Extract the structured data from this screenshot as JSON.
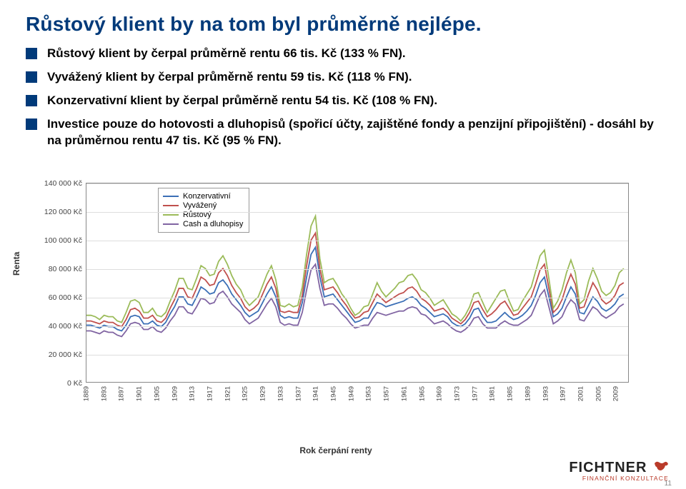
{
  "title": "Růstový klient by na tom byl průměrně nejlépe.",
  "title_color": "#003a7a",
  "bullets": [
    "Růstový klient by čerpal průměrně rentu 66 tis. Kč (133 % FN).",
    "Vyvážený klient by čerpal průměrně rentu 59 tis. Kč (118 % FN).",
    "Konzervativní klient by čerpal průměrně rentu 54 tis. Kč (108 % FN).",
    "Investice pouze do hotovosti a dluhopisů (spořicí účty, zajištěné fondy a penzijní připojištění) - dosáhl by na průměrnou rentu 47 tis. Kč (95 % FN)."
  ],
  "bullet_square_color": "#003a7a",
  "chart": {
    "type": "line",
    "ylabel": "Renta",
    "xlabel": "Rok čerpání renty",
    "ylim": [
      0,
      140000
    ],
    "ytick_step": 20000,
    "ytick_labels": [
      "0 Kč",
      "20 000 Kč",
      "40 000 Kč",
      "60 000 Kč",
      "80 000 Kč",
      "100 000 Kč",
      "120 000 Kč",
      "140 000 Kč"
    ],
    "xlim": [
      1889,
      2012
    ],
    "xtick_step": 4,
    "xtick_start": 1889,
    "xtick_end": 2009,
    "background_color": "#ffffff",
    "grid_color": "#dddddd",
    "border_color": "#888888",
    "line_width": 1.8,
    "series": [
      {
        "name": "Konzervativní",
        "color": "#3b6fb6",
        "values": [
          40000,
          40000,
          39000,
          38000,
          40000,
          39000,
          39000,
          37000,
          36000,
          40000,
          46000,
          47000,
          46000,
          41000,
          41000,
          43000,
          40000,
          39000,
          42000,
          48000,
          53000,
          60000,
          60000,
          55000,
          54000,
          60000,
          67000,
          65000,
          62000,
          63000,
          70000,
          72000,
          68000,
          62000,
          58000,
          54000,
          49000,
          46000,
          48000,
          50000,
          56000,
          62000,
          67000,
          60000,
          47000,
          45000,
          46000,
          45000,
          45000,
          56000,
          74000,
          90000,
          95000,
          74000,
          60000,
          61000,
          62000,
          58000,
          54000,
          50000,
          46000,
          42000,
          43000,
          45000,
          45000,
          51000,
          56000,
          55000,
          53000,
          54000,
          55000,
          56000,
          57000,
          59000,
          60000,
          58000,
          54000,
          52000,
          49000,
          46000,
          47000,
          48000,
          46000,
          42000,
          40000,
          39000,
          41000,
          45000,
          51000,
          52000,
          46000,
          42000,
          42000,
          43000,
          46000,
          49000,
          46000,
          44000,
          45000,
          47000,
          50000,
          54000,
          61000,
          70000,
          74000,
          60000,
          46000,
          48000,
          52000,
          60000,
          67000,
          62000,
          49000,
          48000,
          54000,
          60000,
          57000,
          52000,
          50000,
          52000,
          55000,
          60000,
          62000
        ]
      },
      {
        "name": "Vyvážený",
        "color": "#c0504d",
        "values": [
          43000,
          43000,
          42000,
          41000,
          43000,
          42000,
          42000,
          40000,
          39000,
          44000,
          51000,
          52000,
          50000,
          45000,
          45000,
          47000,
          43000,
          42000,
          45000,
          52000,
          58000,
          66000,
          66000,
          60000,
          59000,
          66000,
          74000,
          72000,
          68000,
          69000,
          77000,
          80000,
          75000,
          68000,
          63000,
          59000,
          53000,
          50000,
          52000,
          55000,
          62000,
          69000,
          74000,
          66000,
          50000,
          49000,
          50000,
          49000,
          49000,
          61000,
          82000,
          100000,
          105000,
          80000,
          65000,
          66000,
          67000,
          63000,
          58000,
          54000,
          49000,
          45000,
          46000,
          49000,
          50000,
          56000,
          62000,
          59000,
          56000,
          58000,
          60000,
          62000,
          63000,
          66000,
          67000,
          64000,
          59000,
          57000,
          54000,
          50000,
          51000,
          52000,
          49000,
          45000,
          43000,
          41000,
          44000,
          49000,
          56000,
          57000,
          51000,
          46000,
          48000,
          51000,
          55000,
          57000,
          52000,
          47000,
          48000,
          52000,
          56000,
          60000,
          69000,
          79000,
          83000,
          66000,
          49000,
          52000,
          58000,
          68000,
          76000,
          69000,
          52000,
          53000,
          62000,
          70000,
          65000,
          58000,
          55000,
          57000,
          61000,
          68000,
          70000
        ]
      },
      {
        "name": "Růstový",
        "color": "#9bbb59",
        "values": [
          47000,
          47000,
          46000,
          44000,
          47000,
          46000,
          46000,
          43000,
          42000,
          49000,
          57000,
          58000,
          56000,
          49000,
          49000,
          52000,
          47000,
          46000,
          49000,
          57000,
          64000,
          73000,
          73000,
          66000,
          65000,
          73000,
          82000,
          80000,
          75000,
          76000,
          85000,
          89000,
          83000,
          75000,
          69000,
          65000,
          58000,
          54000,
          57000,
          60000,
          68000,
          76000,
          82000,
          72000,
          54000,
          53000,
          55000,
          53000,
          54000,
          67000,
          90000,
          110000,
          117000,
          87000,
          70000,
          72000,
          73000,
          68000,
          62000,
          58000,
          52000,
          47000,
          49000,
          53000,
          54000,
          62000,
          70000,
          64000,
          60000,
          63000,
          66000,
          70000,
          71000,
          75000,
          76000,
          72000,
          65000,
          63000,
          59000,
          54000,
          56000,
          58000,
          53000,
          48000,
          46000,
          43000,
          47000,
          53000,
          62000,
          63000,
          56000,
          49000,
          54000,
          59000,
          64000,
          65000,
          57000,
          50000,
          51000,
          57000,
          62000,
          67000,
          78000,
          89000,
          93000,
          73000,
          52000,
          57000,
          65000,
          77000,
          86000,
          77000,
          55000,
          58000,
          71000,
          80000,
          73000,
          64000,
          61000,
          63000,
          68000,
          77000,
          80000
        ]
      },
      {
        "name": "Cash a dluhopisy",
        "color": "#8064a2",
        "values": [
          36000,
          36000,
          35000,
          34000,
          36000,
          35000,
          35000,
          33000,
          32000,
          36000,
          41000,
          42000,
          41000,
          37000,
          37000,
          39000,
          36000,
          35000,
          38000,
          43000,
          47000,
          53000,
          53000,
          49000,
          48000,
          53000,
          59000,
          58000,
          55000,
          56000,
          62000,
          64000,
          60000,
          55000,
          52000,
          49000,
          44000,
          41000,
          43000,
          45000,
          50000,
          55000,
          59000,
          53000,
          42000,
          40000,
          41000,
          40000,
          40000,
          49000,
          65000,
          79000,
          83000,
          66000,
          54000,
          55000,
          55000,
          52000,
          48000,
          45000,
          41000,
          38000,
          39000,
          40000,
          40000,
          45000,
          49000,
          48000,
          47000,
          48000,
          49000,
          50000,
          50000,
          52000,
          53000,
          52000,
          48000,
          47000,
          44000,
          41000,
          42000,
          43000,
          41000,
          38000,
          36000,
          35000,
          37000,
          40000,
          45000,
          46000,
          41000,
          38000,
          38000,
          38000,
          41000,
          43000,
          41000,
          40000,
          40000,
          42000,
          44000,
          47000,
          54000,
          61000,
          65000,
          53000,
          41000,
          43000,
          46000,
          53000,
          58000,
          55000,
          44000,
          43000,
          48000,
          53000,
          51000,
          47000,
          45000,
          47000,
          49000,
          53000,
          55000
        ]
      }
    ],
    "legend_position": "top-left",
    "legend_border": "#999999"
  },
  "brand": {
    "name": "FICHTNER",
    "sub": "FINANČNÍ  KONZULTACE",
    "name_color": "#222222",
    "sub_color": "#b93b2a"
  },
  "page_number": "11"
}
